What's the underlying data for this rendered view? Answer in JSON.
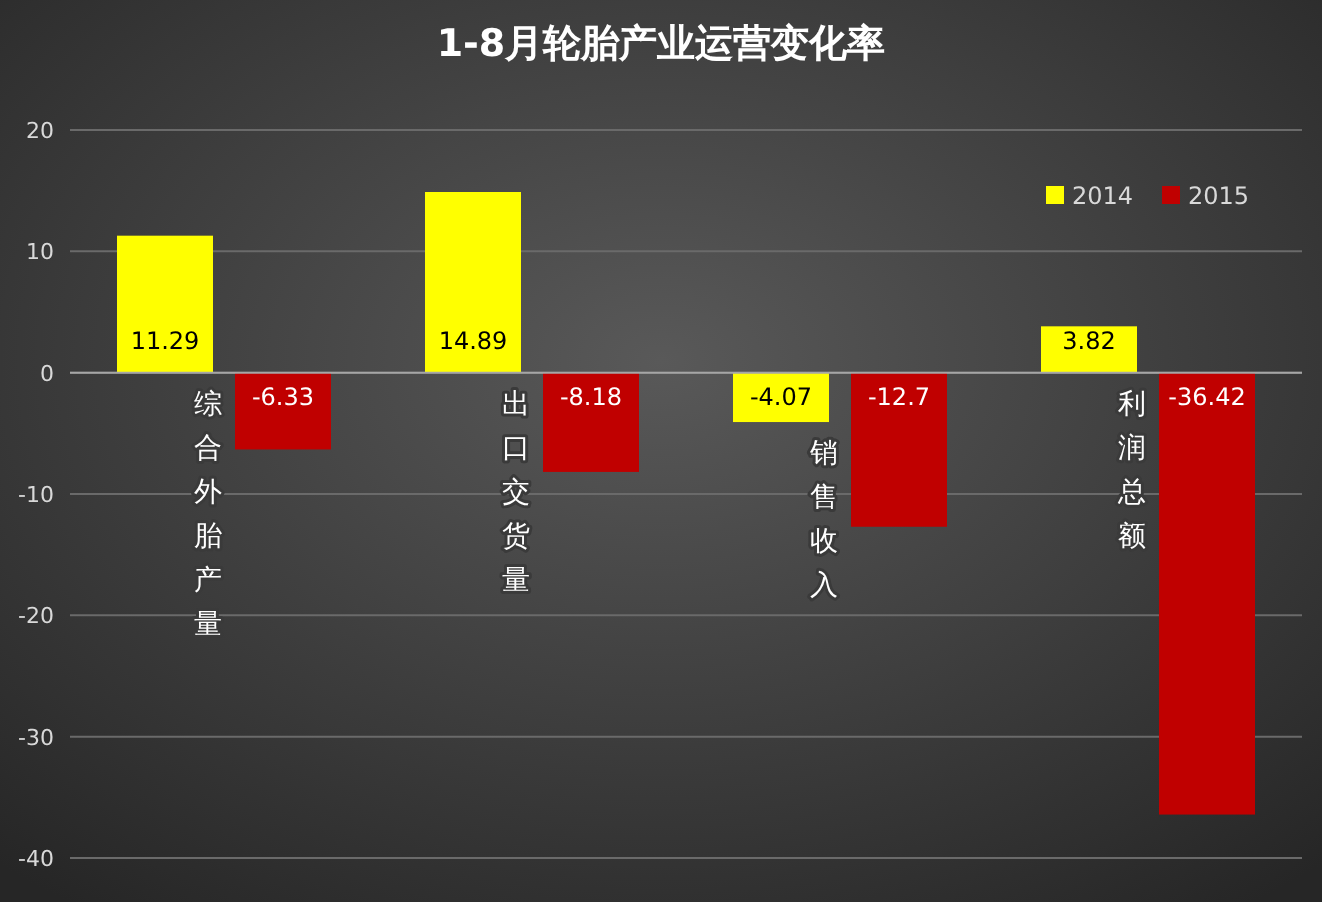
{
  "chart_data": {
    "type": "bar",
    "title": "1-8月轮胎产业运营变化率",
    "categories": [
      "综合外胎产量",
      "出口交货量",
      "销售收入",
      "利润总额"
    ],
    "series": [
      {
        "name": "2014",
        "color": "#ffff00",
        "values": [
          11.29,
          14.89,
          -4.07,
          3.82
        ]
      },
      {
        "name": "2015",
        "color": "#c00000",
        "values": [
          -6.33,
          -8.18,
          -12.7,
          -36.42
        ]
      }
    ],
    "ylim": [
      -40,
      20
    ],
    "yticks": [
      -40,
      -30,
      -20,
      -10,
      0,
      10,
      20
    ],
    "grid": "y",
    "legend": "top right",
    "data_labels": true
  }
}
